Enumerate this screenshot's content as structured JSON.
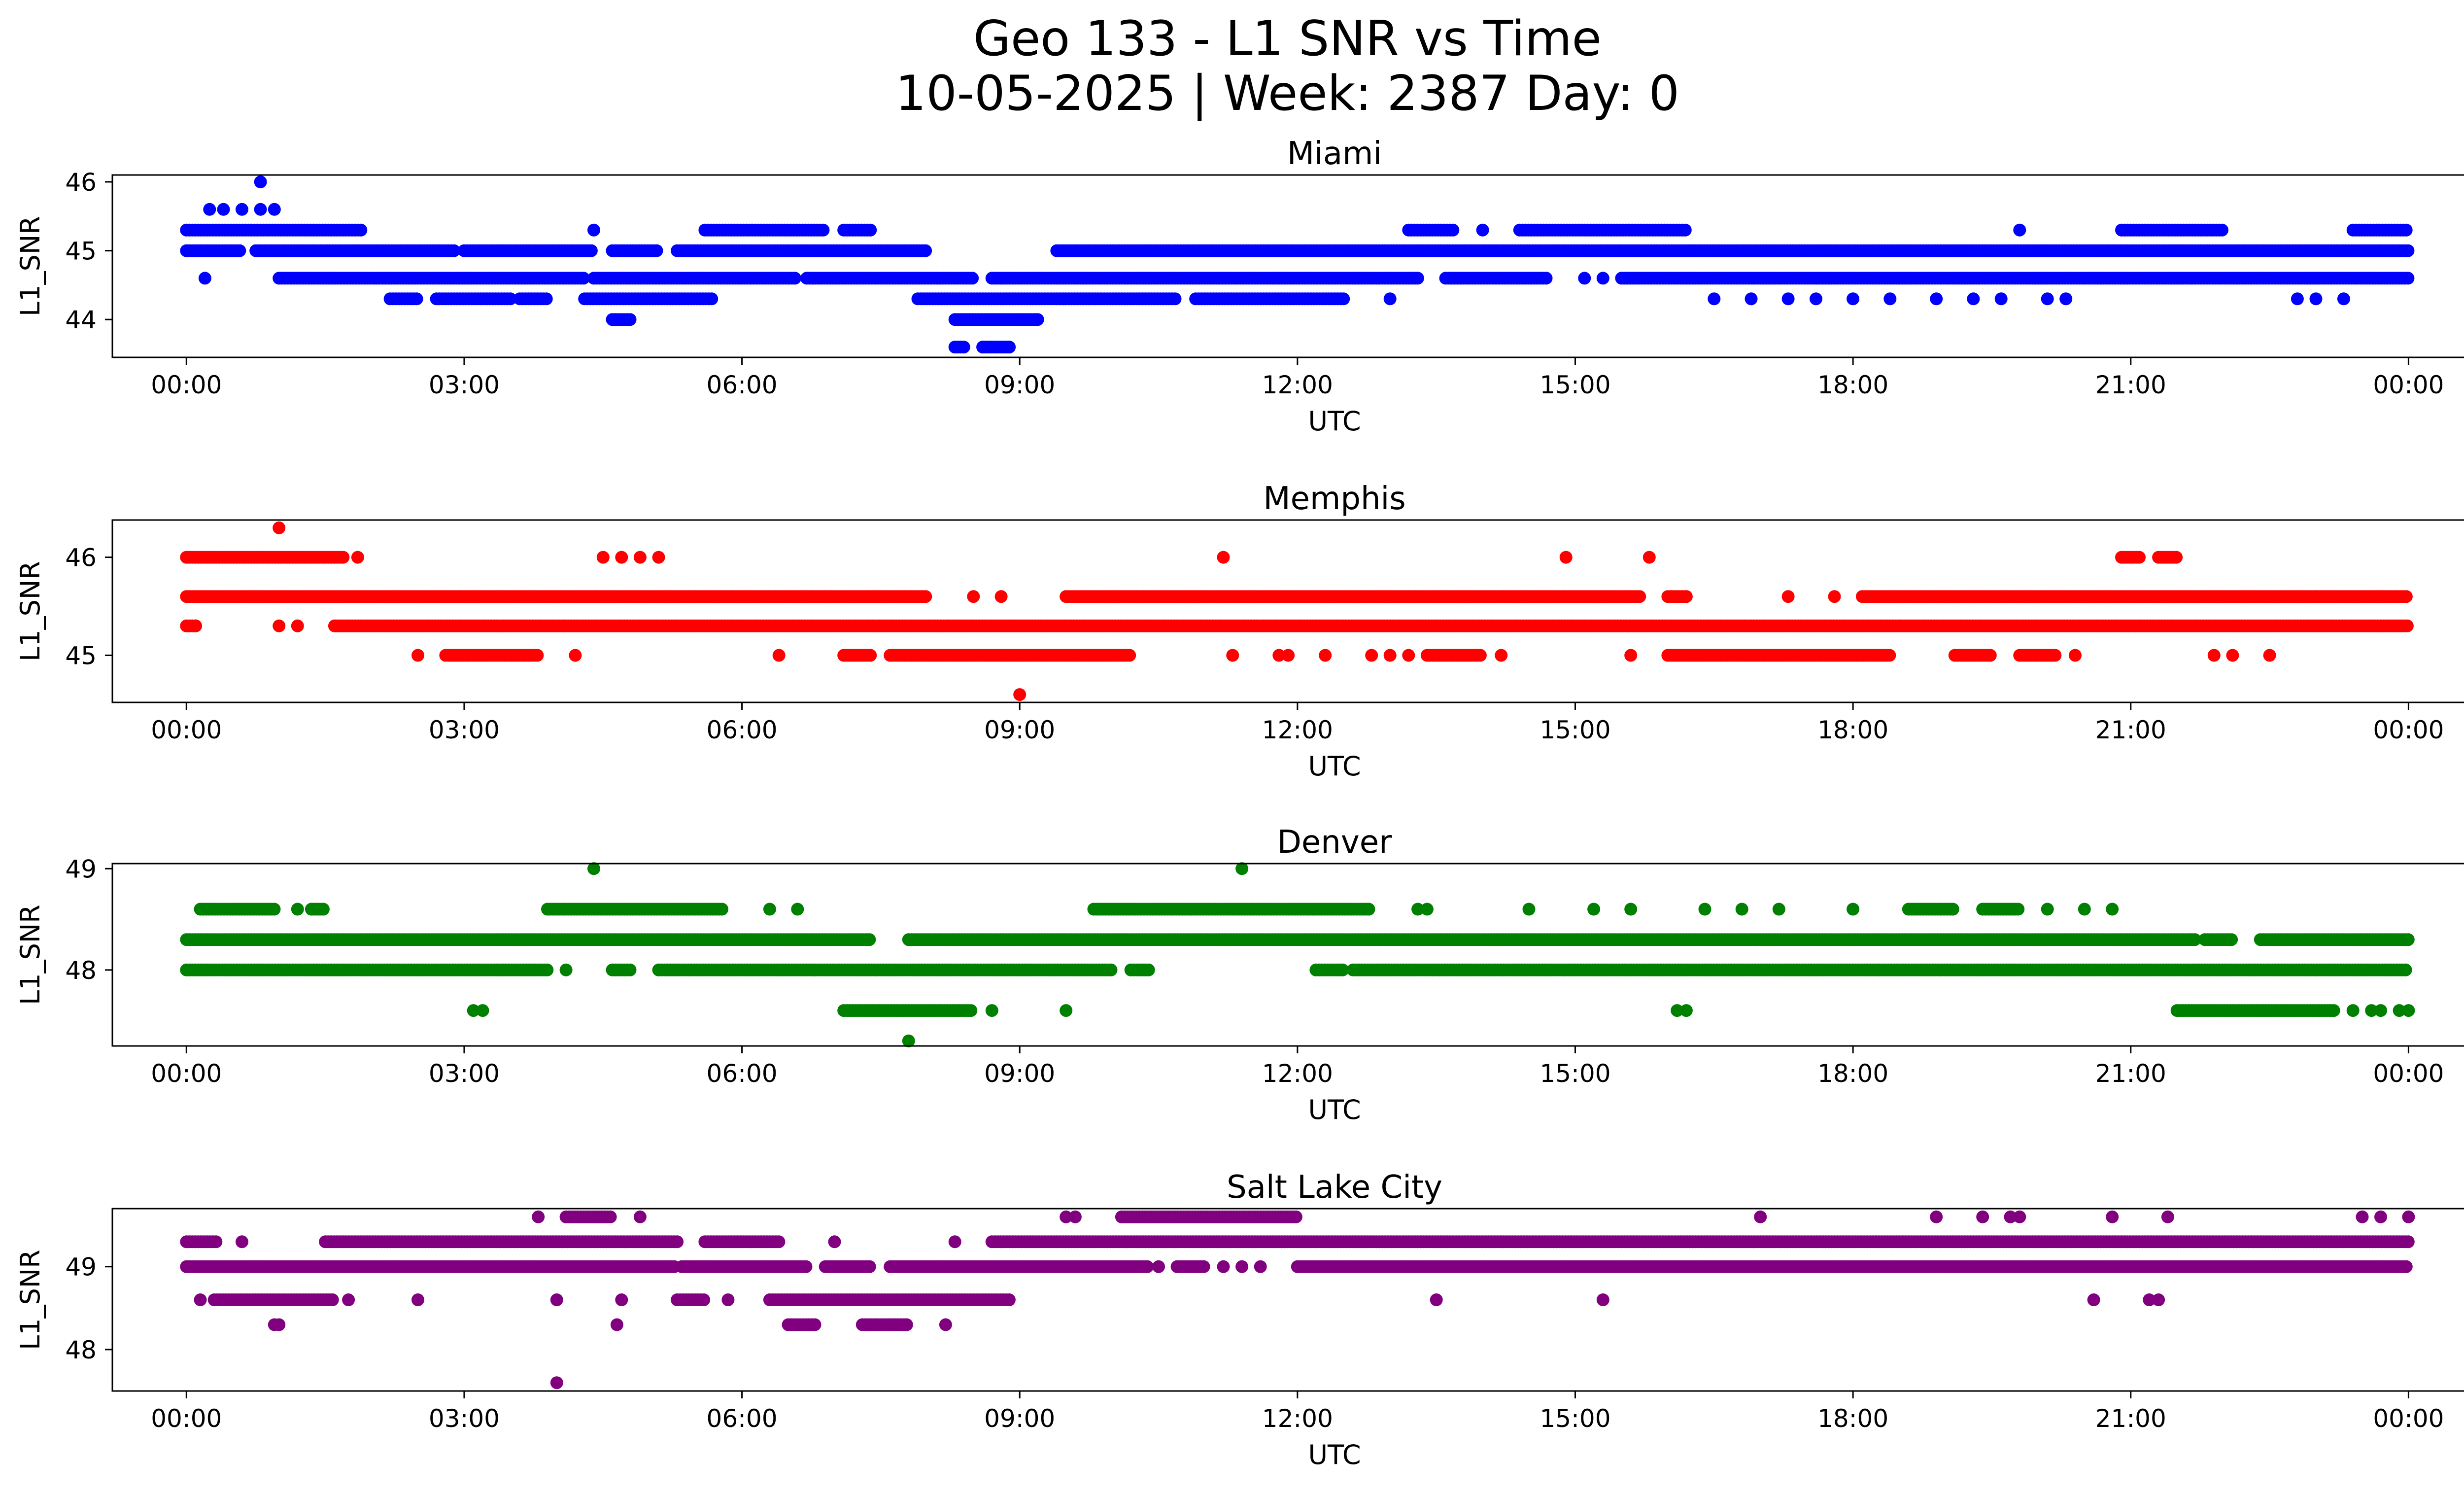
{
  "figure": {
    "title_line1": "Geo 133 - L1 SNR vs Time",
    "title_line2": "10-05-2025 | Week: 2387 Day: 0"
  },
  "chart_data": [
    {
      "type": "scatter",
      "title": "Miami",
      "xlabel": "UTC",
      "ylabel": "L1_SNR",
      "color": "#0000ff",
      "x_unit": "hours UTC",
      "xlim": [
        -0.8,
        25.6
      ],
      "ylim": [
        43.45,
        46.1
      ],
      "xticks": [
        0,
        3,
        6,
        9,
        12,
        15,
        18,
        21,
        24
      ],
      "xtick_labels": [
        "00:00",
        "03:00",
        "06:00",
        "09:00",
        "12:00",
        "15:00",
        "18:00",
        "21:00",
        "00:00"
      ],
      "yticks": [
        44,
        45,
        46
      ],
      "ytick_labels": [
        "44",
        "45",
        "46"
      ],
      "level_runs": [
        {
          "y": 45.0,
          "runs": [
            [
              0.0,
              0.6
            ],
            [
              0.75,
              2.9
            ],
            [
              3.0,
              4.4
            ],
            [
              4.6,
              5.1
            ],
            [
              5.3,
              8.0
            ],
            [
              9.4,
              24.0
            ]
          ]
        },
        {
          "y": 45.3,
          "runs": [
            [
              0.0,
              1.9
            ],
            [
              5.6,
              6.9
            ],
            [
              7.1,
              7.4
            ],
            [
              13.2,
              13.7
            ],
            [
              14.4,
              16.2
            ],
            [
              20.9,
              22.0
            ],
            [
              23.4,
              24.0
            ]
          ]
        },
        {
          "y": 44.6,
          "runs": [
            [
              1.0,
              4.3
            ],
            [
              4.4,
              6.6
            ],
            [
              6.7,
              8.5
            ],
            [
              8.7,
              13.3
            ],
            [
              13.6,
              14.7
            ],
            [
              15.5,
              24.0
            ]
          ]
        },
        {
          "y": 44.3,
          "runs": [
            [
              2.2,
              2.5
            ],
            [
              2.7,
              3.5
            ],
            [
              3.6,
              3.9
            ],
            [
              4.3,
              5.7
            ],
            [
              7.9,
              10.7
            ],
            [
              10.9,
              12.5
            ]
          ]
        },
        {
          "y": 44.0,
          "runs": [
            [
              4.6,
              4.8
            ],
            [
              8.3,
              9.2
            ]
          ]
        },
        {
          "y": 43.6,
          "runs": [
            [
              8.3,
              8.4
            ],
            [
              8.6,
              8.9
            ]
          ]
        }
      ],
      "isolated_points": [
        [
          0.8,
          46.0
        ],
        [
          0.25,
          45.6
        ],
        [
          0.4,
          45.6
        ],
        [
          0.6,
          45.6
        ],
        [
          0.8,
          45.6
        ],
        [
          0.95,
          45.6
        ],
        [
          0.2,
          44.6
        ],
        [
          4.4,
          45.3
        ],
        [
          14.0,
          45.3
        ],
        [
          19.8,
          45.3
        ],
        [
          15.1,
          44.6
        ],
        [
          15.3,
          44.6
        ],
        [
          13.0,
          44.3
        ],
        [
          16.5,
          44.3
        ],
        [
          16.9,
          44.3
        ],
        [
          17.3,
          44.3
        ],
        [
          17.6,
          44.3
        ],
        [
          18.0,
          44.3
        ],
        [
          18.4,
          44.3
        ],
        [
          18.9,
          44.3
        ],
        [
          19.3,
          44.3
        ],
        [
          19.6,
          44.3
        ],
        [
          20.1,
          44.3
        ],
        [
          20.3,
          44.3
        ],
        [
          22.8,
          44.3
        ],
        [
          23.0,
          44.3
        ],
        [
          23.3,
          44.3
        ]
      ]
    },
    {
      "type": "scatter",
      "title": "Memphis",
      "xlabel": "UTC",
      "ylabel": "L1_SNR",
      "color": "#ff0000",
      "x_unit": "hours UTC",
      "xlim": [
        -0.8,
        25.6
      ],
      "ylim": [
        44.52,
        46.38
      ],
      "xticks": [
        0,
        3,
        6,
        9,
        12,
        15,
        18,
        21,
        24
      ],
      "xtick_labels": [
        "00:00",
        "03:00",
        "06:00",
        "09:00",
        "12:00",
        "15:00",
        "18:00",
        "21:00",
        "00:00"
      ],
      "yticks": [
        45,
        46
      ],
      "ytick_labels": [
        "45",
        "46"
      ],
      "level_runs": [
        {
          "y": 45.6,
          "runs": [
            [
              0.0,
              8.0
            ],
            [
              9.5,
              15.7
            ],
            [
              16.0,
              16.2
            ],
            [
              18.1,
              24.0
            ]
          ]
        },
        {
          "y": 45.3,
          "runs": [
            [
              0.0,
              0.1
            ],
            [
              1.6,
              24.0
            ]
          ]
        },
        {
          "y": 46.0,
          "runs": [
            [
              0.0,
              1.7
            ],
            [
              20.9,
              21.1
            ],
            [
              21.3,
              21.5
            ]
          ]
        },
        {
          "y": 45.0,
          "runs": [
            [
              2.8,
              3.8
            ],
            [
              7.1,
              7.4
            ],
            [
              7.6,
              10.2
            ],
            [
              13.4,
              14.0
            ],
            [
              16.0,
              18.4
            ],
            [
              19.1,
              19.5
            ],
            [
              19.8,
              20.2
            ]
          ]
        }
      ],
      "isolated_points": [
        [
          1.0,
          46.3
        ],
        [
          1.85,
          46.0
        ],
        [
          4.5,
          46.0
        ],
        [
          4.7,
          46.0
        ],
        [
          4.9,
          46.0
        ],
        [
          5.1,
          46.0
        ],
        [
          11.2,
          46.0
        ],
        [
          14.9,
          46.0
        ],
        [
          15.8,
          46.0
        ],
        [
          0.1,
          45.3
        ],
        [
          1.0,
          45.3
        ],
        [
          1.2,
          45.3
        ],
        [
          8.5,
          45.6
        ],
        [
          8.8,
          45.6
        ],
        [
          16.2,
          45.6
        ],
        [
          17.3,
          45.6
        ],
        [
          17.8,
          45.6
        ],
        [
          2.5,
          45.0
        ],
        [
          4.2,
          45.0
        ],
        [
          6.4,
          45.0
        ],
        [
          11.3,
          45.0
        ],
        [
          11.8,
          45.0
        ],
        [
          11.9,
          45.0
        ],
        [
          12.3,
          45.0
        ],
        [
          12.8,
          45.0
        ],
        [
          13.0,
          45.0
        ],
        [
          13.2,
          45.0
        ],
        [
          14.2,
          45.0
        ],
        [
          15.6,
          45.0
        ],
        [
          20.4,
          45.0
        ],
        [
          21.9,
          45.0
        ],
        [
          22.1,
          45.0
        ],
        [
          22.5,
          45.0
        ],
        [
          9.0,
          44.6
        ]
      ]
    },
    {
      "type": "scatter",
      "title": "Denver",
      "xlabel": "UTC",
      "ylabel": "L1_SNR",
      "color": "#008000",
      "x_unit": "hours UTC",
      "xlim": [
        -0.8,
        25.6
      ],
      "ylim": [
        47.25,
        49.05
      ],
      "xticks": [
        0,
        3,
        6,
        9,
        12,
        15,
        18,
        21,
        24
      ],
      "xtick_labels": [
        "00:00",
        "03:00",
        "06:00",
        "09:00",
        "12:00",
        "15:00",
        "18:00",
        "21:00",
        "00:00"
      ],
      "yticks": [
        48,
        49
      ],
      "ytick_labels": [
        "48",
        "49"
      ],
      "level_runs": [
        {
          "y": 48.3,
          "runs": [
            [
              0.0,
              7.4
            ],
            [
              7.8,
              21.7
            ],
            [
              21.8,
              22.1
            ],
            [
              22.4,
              24.0
            ]
          ]
        },
        {
          "y": 48.0,
          "runs": [
            [
              0.0,
              3.9
            ],
            [
              4.6,
              4.8
            ],
            [
              5.1,
              10.0
            ],
            [
              10.2,
              10.4
            ],
            [
              12.2,
              12.5
            ],
            [
              12.6,
              24.0
            ]
          ]
        },
        {
          "y": 48.6,
          "runs": [
            [
              0.15,
              0.95
            ],
            [
              1.35,
              1.5
            ],
            [
              3.9,
              5.8
            ],
            [
              9.8,
              12.8
            ],
            [
              18.6,
              19.1
            ],
            [
              19.4,
              19.8
            ]
          ]
        },
        {
          "y": 47.6,
          "runs": [
            [
              7.1,
              8.5
            ],
            [
              21.5,
              23.2
            ]
          ]
        }
      ],
      "isolated_points": [
        [
          4.4,
          49.0
        ],
        [
          11.4,
          49.0
        ],
        [
          1.2,
          48.6
        ],
        [
          6.3,
          48.6
        ],
        [
          6.6,
          48.6
        ],
        [
          13.3,
          48.6
        ],
        [
          13.4,
          48.6
        ],
        [
          14.5,
          48.6
        ],
        [
          15.2,
          48.6
        ],
        [
          15.6,
          48.6
        ],
        [
          16.4,
          48.6
        ],
        [
          16.8,
          48.6
        ],
        [
          17.2,
          48.6
        ],
        [
          18.0,
          48.6
        ],
        [
          20.1,
          48.6
        ],
        [
          20.5,
          48.6
        ],
        [
          20.8,
          48.6
        ],
        [
          4.1,
          48.0
        ],
        [
          3.1,
          47.6
        ],
        [
          3.2,
          47.6
        ],
        [
          8.7,
          47.6
        ],
        [
          9.5,
          47.6
        ],
        [
          16.1,
          47.6
        ],
        [
          16.2,
          47.6
        ],
        [
          23.4,
          47.6
        ],
        [
          23.6,
          47.6
        ],
        [
          23.7,
          47.6
        ],
        [
          23.9,
          47.6
        ],
        [
          24.0,
          47.6
        ],
        [
          7.8,
          47.3
        ]
      ]
    },
    {
      "type": "scatter",
      "title": "Salt Lake City",
      "xlabel": "UTC",
      "ylabel": "L1_SNR",
      "color": "#800080",
      "x_unit": "hours UTC",
      "xlim": [
        -0.8,
        25.6
      ],
      "ylim": [
        47.5,
        49.7
      ],
      "xticks": [
        0,
        3,
        6,
        9,
        12,
        15,
        18,
        21,
        24
      ],
      "xtick_labels": [
        "00:00",
        "03:00",
        "06:00",
        "09:00",
        "12:00",
        "15:00",
        "18:00",
        "21:00",
        "00:00"
      ],
      "yticks": [
        48,
        49
      ],
      "ytick_labels": [
        "48",
        "49"
      ],
      "level_runs": [
        {
          "y": 49.0,
          "runs": [
            [
              0.0,
              5.3
            ],
            [
              5.35,
              6.7
            ],
            [
              6.9,
              7.4
            ],
            [
              7.6,
              10.4
            ],
            [
              10.7,
              11.0
            ],
            [
              12.0,
              24.0
            ]
          ]
        },
        {
          "y": 49.3,
          "runs": [
            [
              0.0,
              0.35
            ],
            [
              1.5,
              5.3
            ],
            [
              5.6,
              6.4
            ],
            [
              8.7,
              24.0
            ]
          ]
        },
        {
          "y": 48.6,
          "runs": [
            [
              0.3,
              1.6
            ],
            [
              5.3,
              5.6
            ],
            [
              6.3,
              8.9
            ]
          ]
        },
        {
          "y": 48.3,
          "runs": [
            [
              6.5,
              6.8
            ],
            [
              7.3,
              7.8
            ]
          ]
        },
        {
          "y": 49.6,
          "runs": [
            [
              4.1,
              4.6
            ],
            [
              10.1,
              12.0
            ]
          ]
        }
      ],
      "isolated_points": [
        [
          0.15,
          48.6
        ],
        [
          0.6,
          49.3
        ],
        [
          0.95,
          48.3
        ],
        [
          1.0,
          48.3
        ],
        [
          1.75,
          48.6
        ],
        [
          2.5,
          48.6
        ],
        [
          3.8,
          49.6
        ],
        [
          4.0,
          48.6
        ],
        [
          4.7,
          48.6
        ],
        [
          4.9,
          49.6
        ],
        [
          4.65,
          48.3
        ],
        [
          4.0,
          47.6
        ],
        [
          5.85,
          48.6
        ],
        [
          7.0,
          49.3
        ],
        [
          8.2,
          48.3
        ],
        [
          8.3,
          49.3
        ],
        [
          9.5,
          49.6
        ],
        [
          9.6,
          49.6
        ],
        [
          10.5,
          49.0
        ],
        [
          11.2,
          49.0
        ],
        [
          11.4,
          49.0
        ],
        [
          11.6,
          49.0
        ],
        [
          13.5,
          48.6
        ],
        [
          15.3,
          48.6
        ],
        [
          17.0,
          49.6
        ],
        [
          18.9,
          49.6
        ],
        [
          19.4,
          49.6
        ],
        [
          19.7,
          49.6
        ],
        [
          19.8,
          49.6
        ],
        [
          20.6,
          48.6
        ],
        [
          20.8,
          49.6
        ],
        [
          21.2,
          48.6
        ],
        [
          21.3,
          48.6
        ],
        [
          21.4,
          49.6
        ],
        [
          23.5,
          49.6
        ],
        [
          23.7,
          49.6
        ],
        [
          24.0,
          49.6
        ]
      ]
    }
  ]
}
